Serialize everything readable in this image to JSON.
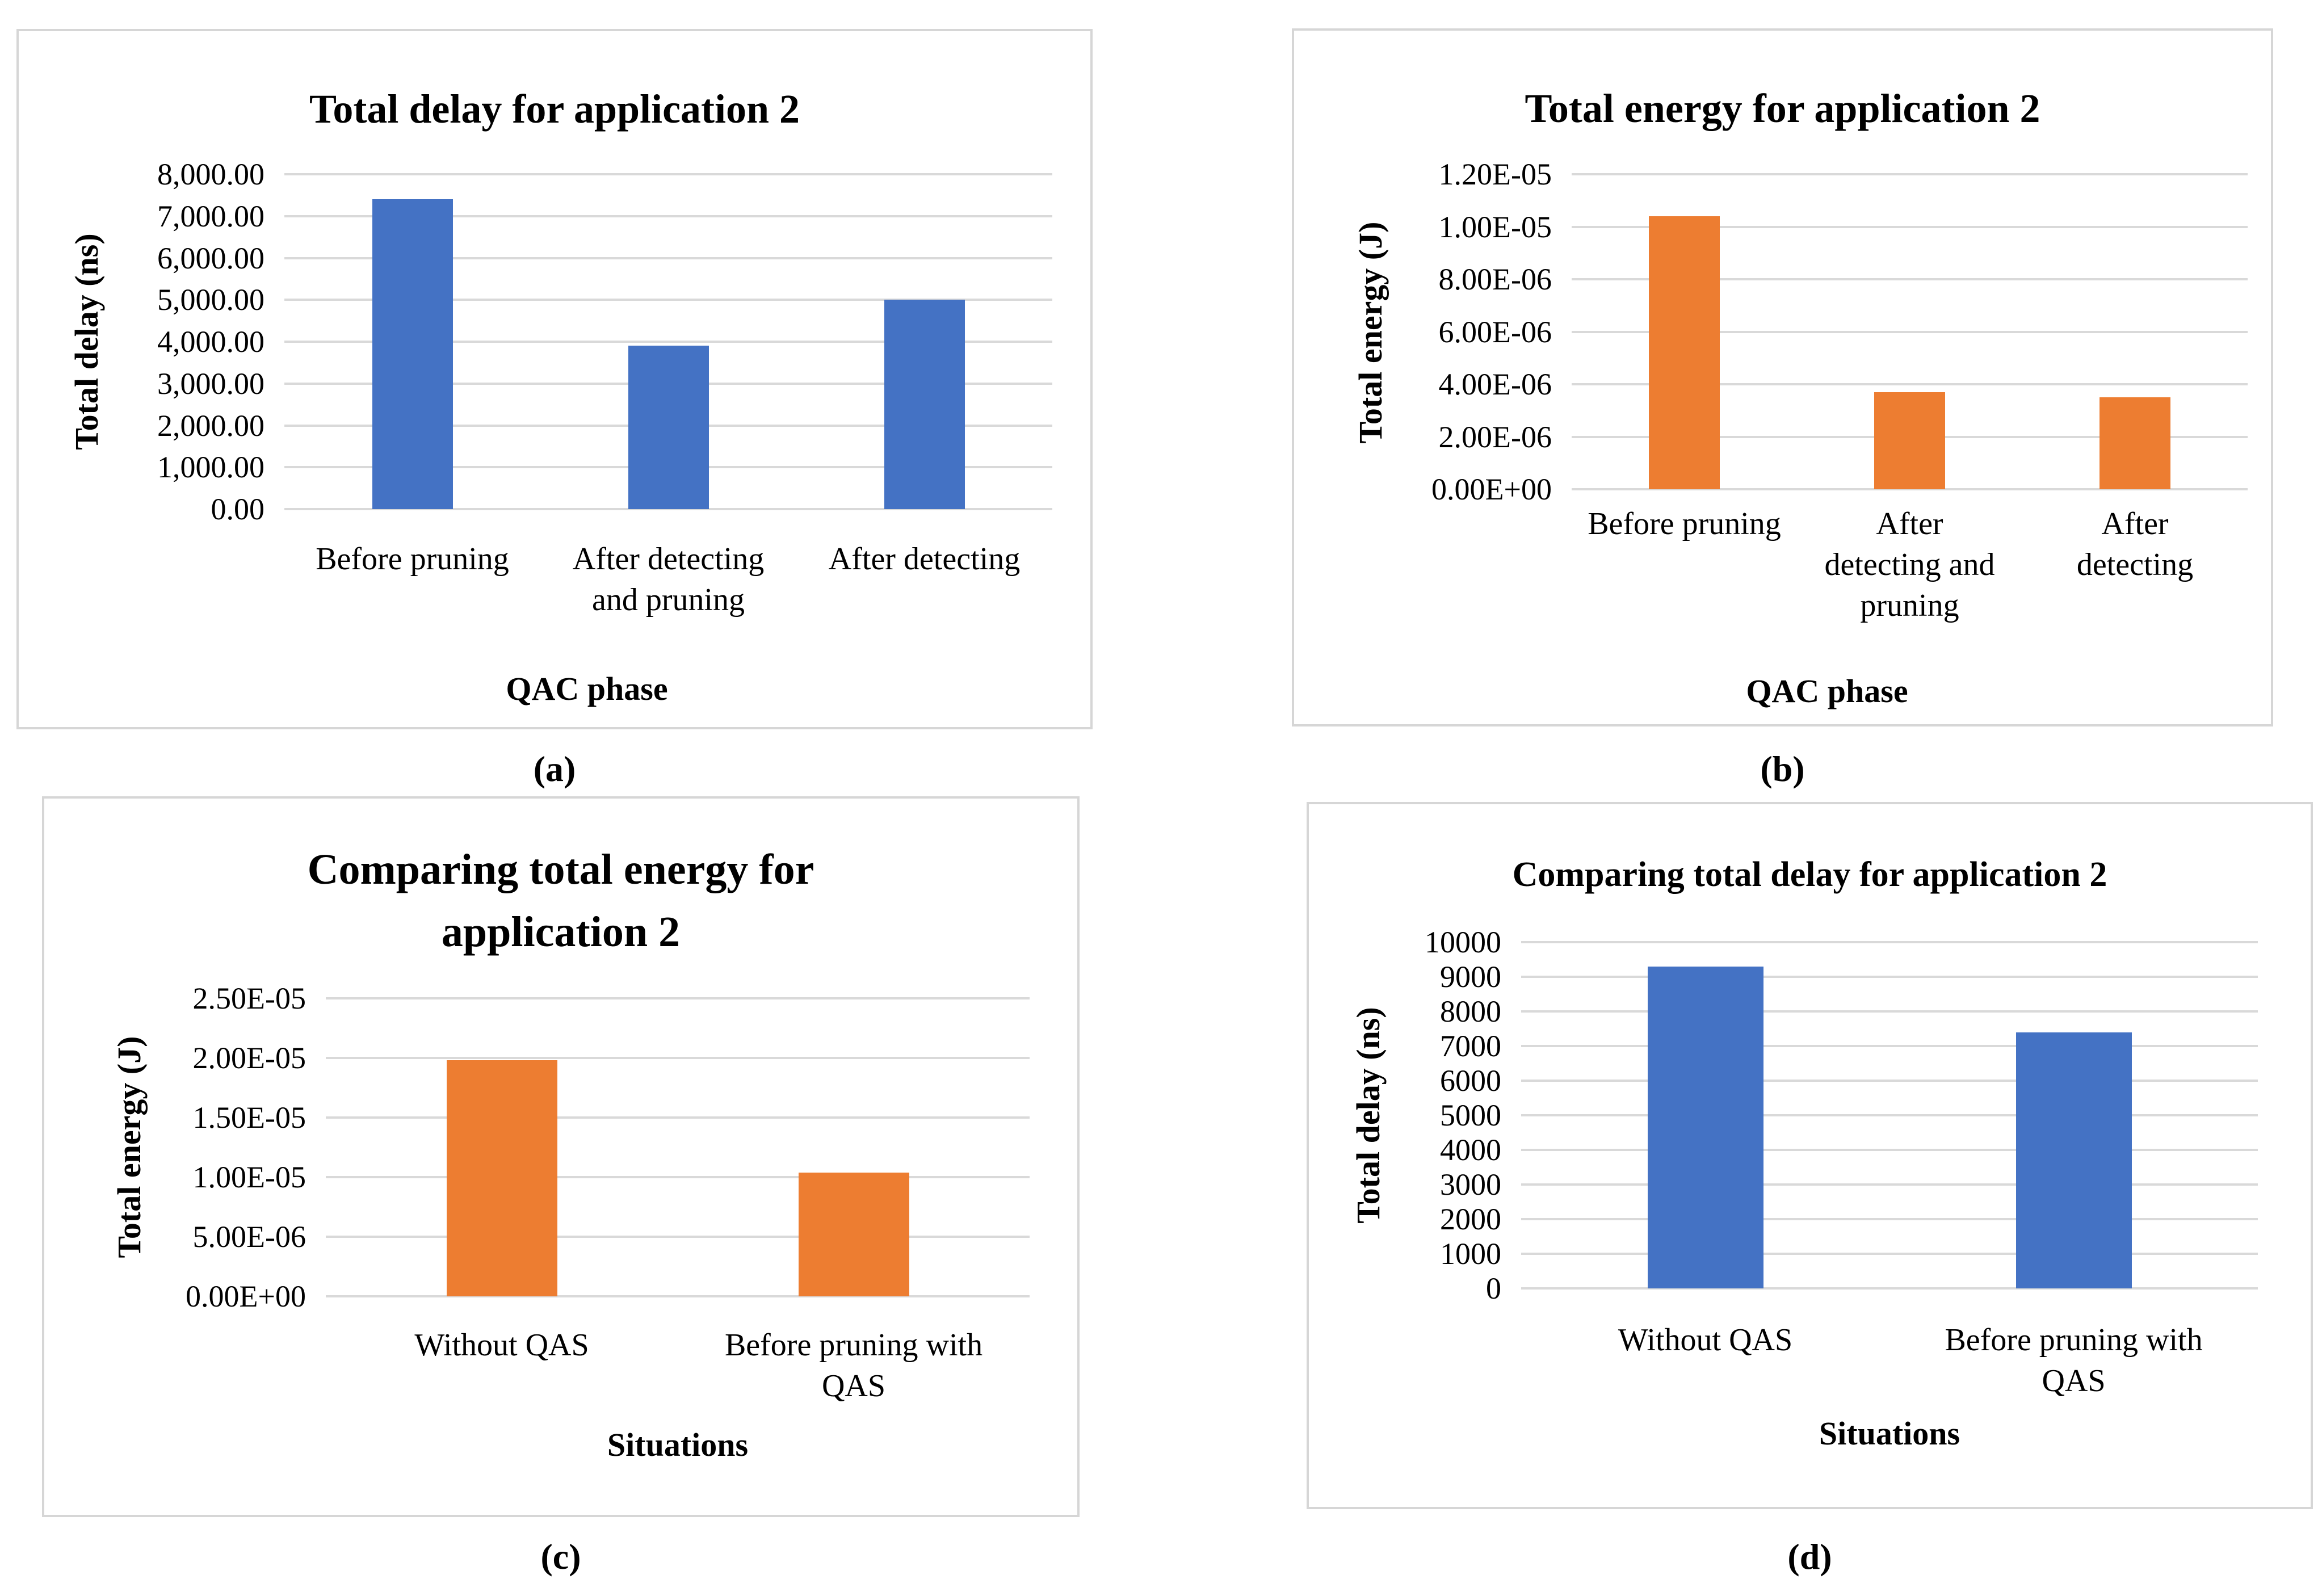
{
  "chart_data": [
    {
      "type": "bar",
      "caption": "(a)",
      "title": "Total delay for application 2",
      "ylabel": "Total delay (ns)",
      "xlabel": "QAC phase",
      "ymax": 8000,
      "ylim": [
        0,
        8000
      ],
      "grid": true,
      "legend": "none",
      "bar_color": "#4472C4",
      "gridline_color": "#d9d9d9",
      "yticks": [
        {
          "value": 8000,
          "label": "8,000.00"
        },
        {
          "value": 7000,
          "label": "7,000.00"
        },
        {
          "value": 6000,
          "label": "6,000.00"
        },
        {
          "value": 5000,
          "label": "5,000.00"
        },
        {
          "value": 4000,
          "label": "4,000.00"
        },
        {
          "value": 3000,
          "label": "3,000.00"
        },
        {
          "value": 2000,
          "label": "2,000.00"
        },
        {
          "value": 1000,
          "label": "1,000.00"
        },
        {
          "value": 0,
          "label": "0.00"
        }
      ],
      "categories": [
        [
          "Before pruning"
        ],
        [
          "After detecting",
          "and pruning"
        ],
        [
          "After detecting"
        ]
      ],
      "values": [
        7400,
        3900,
        5000
      ]
    },
    {
      "type": "bar",
      "caption": "(b)",
      "title": "Total energy for application 2",
      "ylabel": "Total energy (J)",
      "xlabel": "QAC phase",
      "ymax": 1.2e-05,
      "ylim": [
        0,
        1.2e-05
      ],
      "grid": true,
      "legend": "none",
      "bar_color": "#ED7D31",
      "gridline_color": "#d9d9d9",
      "yticks": [
        {
          "value": 1.2e-05,
          "label": "1.20E-05"
        },
        {
          "value": 1e-05,
          "label": "1.00E-05"
        },
        {
          "value": 8e-06,
          "label": "8.00E-06"
        },
        {
          "value": 6e-06,
          "label": "6.00E-06"
        },
        {
          "value": 4e-06,
          "label": "4.00E-06"
        },
        {
          "value": 2e-06,
          "label": "2.00E-06"
        },
        {
          "value": 0,
          "label": "0.00E+00"
        }
      ],
      "categories": [
        [
          "Before pruning"
        ],
        [
          "After",
          "detecting and",
          "pruning"
        ],
        [
          "After",
          "detecting"
        ]
      ],
      "values": [
        1.04e-05,
        3.7e-06,
        3.5e-06
      ]
    },
    {
      "type": "bar",
      "caption": "(c)",
      "title": "Comparing total energy for application 2",
      "ylabel": "Total energy (J)",
      "xlabel": "Situations",
      "ymax": 2.5e-05,
      "ylim": [
        0,
        2.5e-05
      ],
      "grid": true,
      "legend": "none",
      "bar_color": "#ED7D31",
      "gridline_color": "#d9d9d9",
      "yticks": [
        {
          "value": 2.5e-05,
          "label": "2.50E-05"
        },
        {
          "value": 2e-05,
          "label": "2.00E-05"
        },
        {
          "value": 1.5e-05,
          "label": "1.50E-05"
        },
        {
          "value": 1e-05,
          "label": "1.00E-05"
        },
        {
          "value": 5e-06,
          "label": "5.00E-06"
        },
        {
          "value": 0,
          "label": "0.00E+00"
        }
      ],
      "categories": [
        [
          "Without QAS"
        ],
        [
          "Before pruning with",
          "QAS"
        ]
      ],
      "values": [
        1.98e-05,
        1.04e-05
      ]
    },
    {
      "type": "bar",
      "caption": "(d)",
      "title": "Comparing total delay for application 2",
      "ylabel": "Total delay (ns)",
      "xlabel": "Situations",
      "ymax": 10000,
      "ylim": [
        0,
        10000
      ],
      "grid": true,
      "legend": "none",
      "bar_color": "#4472C4",
      "gridline_color": "#d9d9d9",
      "yticks": [
        {
          "value": 10000,
          "label": "10000"
        },
        {
          "value": 9000,
          "label": "9000"
        },
        {
          "value": 8000,
          "label": "8000"
        },
        {
          "value": 7000,
          "label": "7000"
        },
        {
          "value": 6000,
          "label": "6000"
        },
        {
          "value": 5000,
          "label": "5000"
        },
        {
          "value": 4000,
          "label": "4000"
        },
        {
          "value": 3000,
          "label": "3000"
        },
        {
          "value": 2000,
          "label": "2000"
        },
        {
          "value": 1000,
          "label": "1000"
        },
        {
          "value": 0,
          "label": "0"
        }
      ],
      "categories": [
        [
          "Without QAS"
        ],
        [
          "Before pruning with",
          "QAS"
        ]
      ],
      "values": [
        9300,
        7400
      ]
    }
  ]
}
